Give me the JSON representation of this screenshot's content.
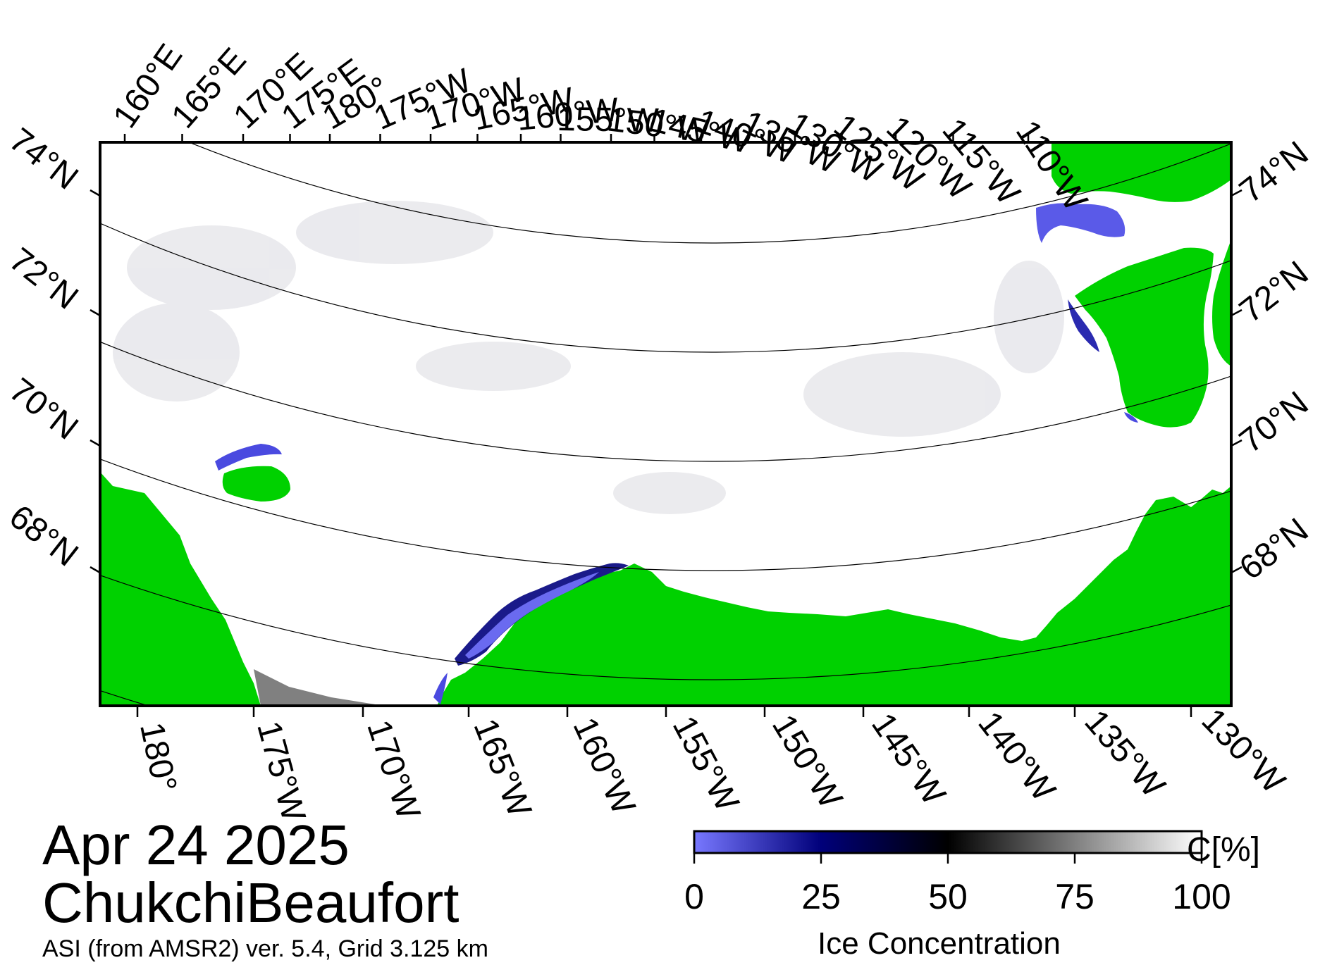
{
  "map": {
    "date": "Apr 24 2025",
    "region": "ChukchiBeaufort",
    "product": "ASI (from AMSR2) ver. 5.4,  Grid 3.125 km",
    "colors": {
      "land": "#00d100",
      "no_data": "#808080",
      "ice_full": "#ffffff",
      "ice_mid": "#000000",
      "ice_low": "#00007a",
      "open_water": "#7878ff"
    },
    "top_longitude_labels": [
      "160°E",
      "165°E",
      "170°E",
      "175°E",
      "180°",
      "175°W",
      "170°W",
      "165°W",
      "160°W",
      "155°W",
      "150°W",
      "145°W",
      "140°W",
      "135°W",
      "130°W",
      "125°W",
      "120°W",
      "115°W",
      "110°W"
    ],
    "bottom_longitude_labels": [
      "180°",
      "175°W",
      "170°W",
      "165°W",
      "160°W",
      "155°W",
      "150°W",
      "145°W",
      "140°W",
      "135°W",
      "130°W"
    ],
    "left_latitude_labels": [
      "74°N",
      "72°N",
      "70°N",
      "68°N"
    ],
    "right_latitude_labels": [
      "74°N",
      "72°N",
      "70°N",
      "68°N"
    ]
  },
  "legend": {
    "title": "Ice Concentration",
    "unit": "C[%]",
    "ticks": [
      "0",
      "25",
      "50",
      "75",
      "100"
    ],
    "colors": [
      "#7878ff",
      "#00007a",
      "#000000",
      "#ffffff"
    ]
  }
}
